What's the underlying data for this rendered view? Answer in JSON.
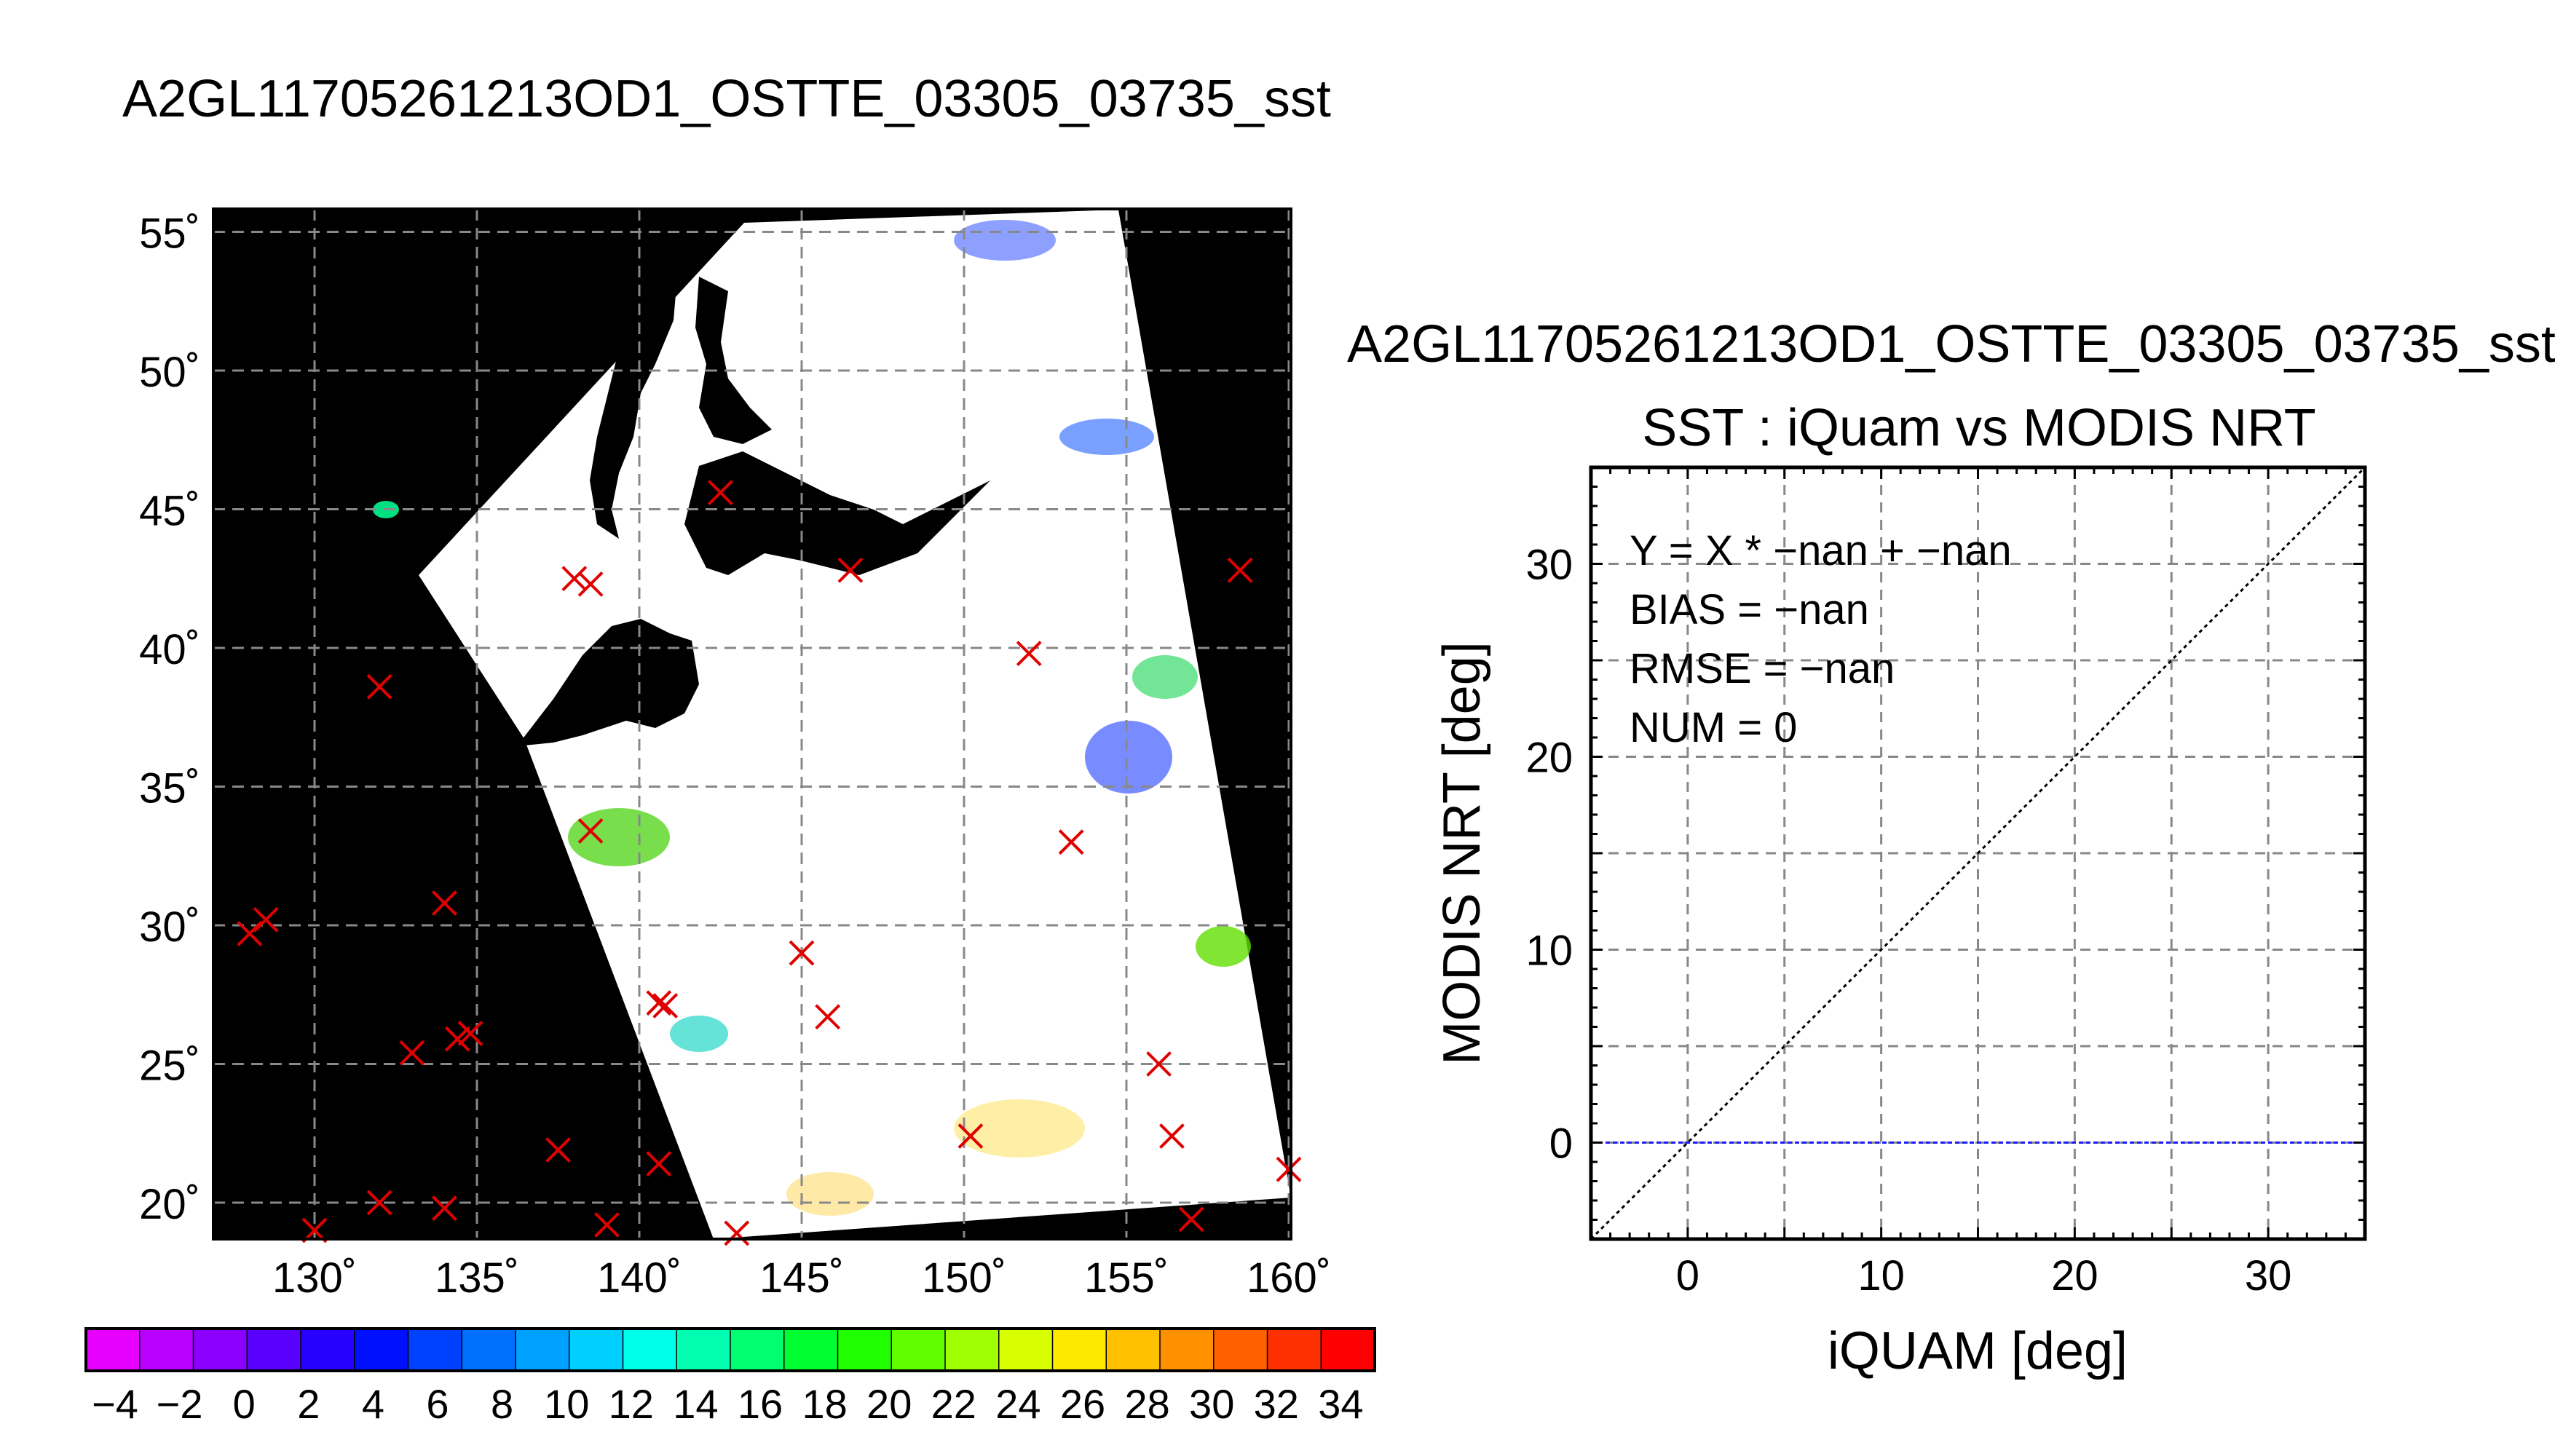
{
  "map_panel": {
    "title": "A2GL11705261213OD1_OSTTE_03305_03735_sst",
    "lat_ticks": [
      "55˚",
      "50˚",
      "45˚",
      "40˚",
      "35˚",
      "30˚",
      "25˚",
      "20˚"
    ],
    "lon_ticks": [
      "130˚",
      "135˚",
      "140˚",
      "145˚",
      "150˚",
      "155˚",
      "160˚"
    ],
    "colorbar_labels": [
      "−4",
      "−2",
      "0",
      "2",
      "4",
      "6",
      "8",
      "10",
      "12",
      "14",
      "16",
      "18",
      "20",
      "22",
      "24",
      "26",
      "28",
      "30",
      "32",
      "34"
    ],
    "colors": {
      "background": "#000000",
      "swath": "#ffffff",
      "marker": "#e00000",
      "colorbar": [
        "#e800ff",
        "#b800ff",
        "#8c00ff",
        "#5a00ff",
        "#2800ff",
        "#0010ff",
        "#0040ff",
        "#0070ff",
        "#00a0ff",
        "#00d0ff",
        "#00ffe8",
        "#00ffb0",
        "#00ff70",
        "#00ff30",
        "#20ff00",
        "#60ff00",
        "#a0ff00",
        "#d8ff00",
        "#ffe800",
        "#ffc000",
        "#ff9000",
        "#ff6000",
        "#ff3000",
        "#ff0000"
      ]
    }
  },
  "chart_data": {
    "type": "scatter",
    "title": "SST : iQuam vs MODIS NRT",
    "supertitle": "A2GL11705261213OD1_OSTTE_03305_03735_sst",
    "xlabel": "iQUAM [deg]",
    "ylabel": "MODIS NRT [deg]",
    "xlim": [
      -5,
      35
    ],
    "ylim": [
      -5,
      35
    ],
    "xticks": [
      "0",
      "10",
      "20",
      "30"
    ],
    "yticks": [
      "0",
      "10",
      "20",
      "30"
    ],
    "stats": [
      "Y = X * −nan + −nan",
      "BIAS = −nan",
      "RMSE = −nan",
      "NUM = 0"
    ],
    "series": [],
    "reference_lines": [
      {
        "kind": "identity",
        "style": "dotted",
        "color": "#000000"
      },
      {
        "kind": "zero",
        "style": "dashed",
        "color": "#1a1aff"
      }
    ],
    "grid": true
  }
}
